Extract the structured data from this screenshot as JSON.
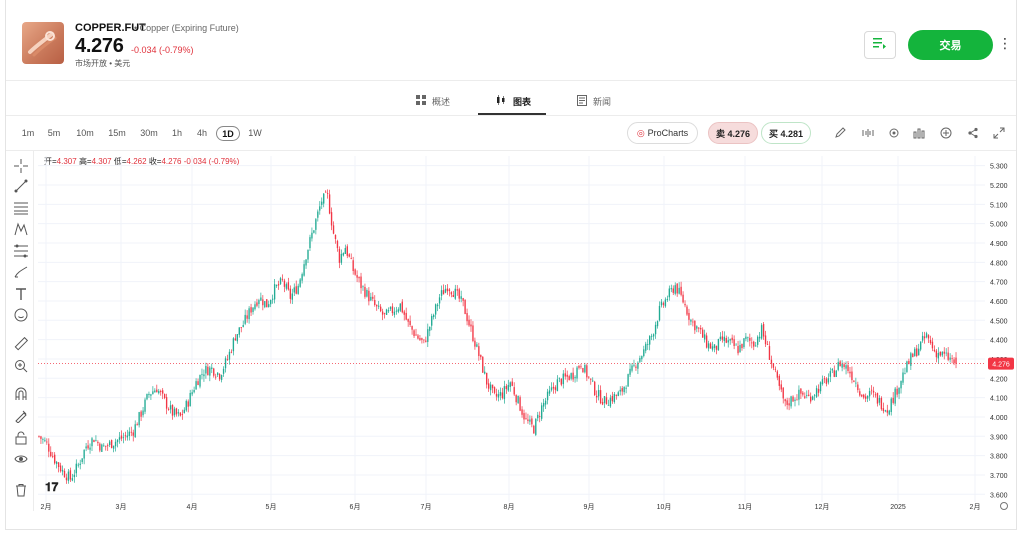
{
  "instrument": {
    "symbol": "COPPER.FUT",
    "description": "• Copper (Expiring Future)",
    "price": "4.276",
    "change": "-0.034 (-0.79%)",
    "market_status": "市场开放 • 美元"
  },
  "header": {
    "trade_label": "交易",
    "more_label": "⋮"
  },
  "tabs": [
    {
      "label": "概述"
    },
    {
      "label": "图表"
    },
    {
      "label": "新闻"
    }
  ],
  "toolbar": {
    "timeframes": [
      "1m",
      "5m",
      "10m",
      "15m",
      "30m",
      "1h",
      "4h",
      "1D",
      "1W"
    ],
    "active_timeframe": "1D",
    "procharts_label": "ProCharts",
    "sell_label": "卖 4.276",
    "buy_label": "买 4.281"
  },
  "ohlc": {
    "open_label": "开=",
    "open": "4.307",
    "high_label": "高=",
    "high": "4.307",
    "low_label": "低=",
    "low": "4.262",
    "close_label": "收=",
    "close": "4.276",
    "change": "-0.034 (-0.79%)"
  },
  "colors": {
    "up": "#22ab94",
    "down": "#f23645",
    "accent": "#14b43c",
    "price_line": "#f23645"
  },
  "chart_data": {
    "type": "candlestick",
    "y_ticks": [
      "5.300",
      "5.200",
      "5.100",
      "5.000",
      "4.900",
      "4.800",
      "4.700",
      "4.600",
      "4.500",
      "4.400",
      "4.300",
      "4.200",
      "4.100",
      "4.000",
      "3.900",
      "3.800",
      "3.700",
      "3.600"
    ],
    "y_range": [
      3.56,
      5.35
    ],
    "x_ticks": [
      "2月",
      "3月",
      "4月",
      "5月",
      "6月",
      "7月",
      "8月",
      "9月",
      "10月",
      "11月",
      "12月",
      "2025",
      "2月"
    ],
    "last_price_label": "4.276",
    "last_price": 4.276,
    "approx_close_path": [
      [
        0,
        3.9
      ],
      [
        4,
        3.86
      ],
      [
        8,
        3.78
      ],
      [
        12,
        3.72
      ],
      [
        16,
        3.68
      ],
      [
        20,
        3.75
      ],
      [
        24,
        3.85
      ],
      [
        28,
        3.89
      ],
      [
        32,
        3.84
      ],
      [
        36,
        3.86
      ],
      [
        40,
        3.88
      ],
      [
        44,
        3.9
      ],
      [
        48,
        3.93
      ],
      [
        52,
        4.02
      ],
      [
        56,
        4.12
      ],
      [
        60,
        4.15
      ],
      [
        64,
        4.08
      ],
      [
        68,
        4.02
      ],
      [
        72,
        4.0
      ],
      [
        76,
        4.08
      ],
      [
        80,
        4.18
      ],
      [
        84,
        4.24
      ],
      [
        88,
        4.25
      ],
      [
        92,
        4.22
      ],
      [
        96,
        4.3
      ],
      [
        100,
        4.42
      ],
      [
        104,
        4.48
      ],
      [
        108,
        4.56
      ],
      [
        112,
        4.62
      ],
      [
        116,
        4.58
      ],
      [
        120,
        4.66
      ],
      [
        124,
        4.7
      ],
      [
        128,
        4.62
      ],
      [
        132,
        4.68
      ],
      [
        136,
        4.84
      ],
      [
        140,
        4.98
      ],
      [
        144,
        5.12
      ],
      [
        147,
        5.14
      ],
      [
        150,
        4.95
      ],
      [
        153,
        4.82
      ],
      [
        156,
        4.88
      ],
      [
        160,
        4.76
      ],
      [
        164,
        4.68
      ],
      [
        168,
        4.62
      ],
      [
        172,
        4.56
      ],
      [
        176,
        4.52
      ],
      [
        180,
        4.55
      ],
      [
        184,
        4.58
      ],
      [
        188,
        4.48
      ],
      [
        192,
        4.42
      ],
      [
        196,
        4.38
      ],
      [
        200,
        4.5
      ],
      [
        204,
        4.62
      ],
      [
        208,
        4.68
      ],
      [
        212,
        4.64
      ],
      [
        216,
        4.58
      ],
      [
        220,
        4.45
      ],
      [
        224,
        4.32
      ],
      [
        228,
        4.18
      ],
      [
        232,
        4.1
      ],
      [
        236,
        4.12
      ],
      [
        240,
        4.18
      ],
      [
        244,
        4.08
      ],
      [
        248,
        3.98
      ],
      [
        252,
        3.94
      ],
      [
        256,
        4.05
      ],
      [
        260,
        4.12
      ],
      [
        264,
        4.18
      ],
      [
        268,
        4.2
      ],
      [
        272,
        4.22
      ],
      [
        276,
        4.28
      ],
      [
        280,
        4.2
      ],
      [
        284,
        4.12
      ],
      [
        288,
        4.08
      ],
      [
        292,
        4.1
      ],
      [
        296,
        4.12
      ],
      [
        300,
        4.2
      ],
      [
        304,
        4.28
      ],
      [
        308,
        4.34
      ],
      [
        312,
        4.42
      ],
      [
        316,
        4.55
      ],
      [
        320,
        4.62
      ],
      [
        324,
        4.68
      ],
      [
        328,
        4.6
      ],
      [
        332,
        4.5
      ],
      [
        336,
        4.45
      ],
      [
        340,
        4.38
      ],
      [
        344,
        4.35
      ],
      [
        348,
        4.4
      ],
      [
        352,
        4.38
      ],
      [
        356,
        4.35
      ],
      [
        360,
        4.4
      ],
      [
        364,
        4.38
      ],
      [
        368,
        4.45
      ],
      [
        372,
        4.32
      ],
      [
        376,
        4.18
      ],
      [
        380,
        4.06
      ],
      [
        384,
        4.1
      ],
      [
        388,
        4.12
      ],
      [
        392,
        4.1
      ],
      [
        396,
        4.14
      ],
      [
        400,
        4.18
      ],
      [
        404,
        4.22
      ],
      [
        408,
        4.28
      ],
      [
        412,
        4.25
      ],
      [
        416,
        4.18
      ],
      [
        420,
        4.1
      ],
      [
        424,
        4.12
      ],
      [
        428,
        4.08
      ],
      [
        432,
        4.04
      ],
      [
        436,
        4.12
      ],
      [
        440,
        4.22
      ],
      [
        444,
        4.3
      ],
      [
        448,
        4.36
      ],
      [
        452,
        4.42
      ],
      [
        456,
        4.34
      ],
      [
        460,
        4.32
      ],
      [
        464,
        4.3
      ],
      [
        467,
        4.276
      ]
    ]
  }
}
